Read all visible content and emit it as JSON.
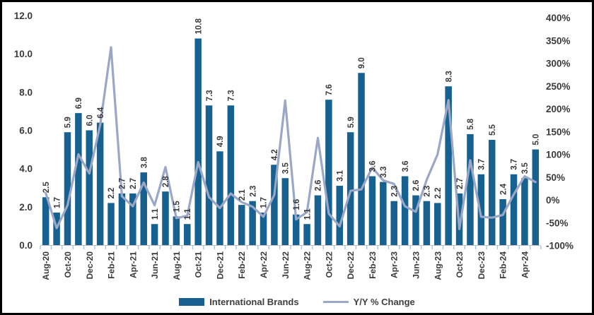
{
  "legend": {
    "bars_label": "International Brands",
    "line_label": "Y/Y % Change"
  },
  "colors": {
    "bar": "#16618F",
    "line": "#9BA7C7",
    "axis_line": "#BFBFBF",
    "axis_tick": "#9DC3E6",
    "text": "#3A3A3A",
    "frame_border": "#000000"
  },
  "chart_data": {
    "type": "bar",
    "combo": "bar+line",
    "title": "",
    "xlabel": "",
    "ylabel_left": "",
    "ylabel_right": "",
    "categories": [
      "Aug-20",
      "Sep-20",
      "Oct-20",
      "Nov-20",
      "Dec-20",
      "Jan-21",
      "Feb-21",
      "Mar-21",
      "Apr-21",
      "May-21",
      "Jun-21",
      "Jul-21",
      "Aug-21",
      "Sep-21",
      "Oct-21",
      "Nov-21",
      "Dec-21",
      "Jan-22",
      "Feb-22",
      "Mar-22",
      "Apr-22",
      "May-22",
      "Jun-22",
      "Jul-22",
      "Aug-22",
      "Sep-22",
      "Oct-22",
      "Nov-22",
      "Dec-22",
      "Jan-23",
      "Feb-23",
      "Mar-23",
      "Apr-23",
      "May-23",
      "Jun-23",
      "Jul-23",
      "Aug-23",
      "Sep-23",
      "Oct-23",
      "Nov-23",
      "Dec-23",
      "Jan-24",
      "Feb-24",
      "Mar-24",
      "Apr-24",
      "May-24"
    ],
    "x_tick_step": 2,
    "series": [
      {
        "name": "International Brands",
        "type": "bar",
        "axis": "left",
        "values": [
          2.5,
          1.7,
          5.9,
          6.9,
          6.0,
          6.4,
          2.2,
          2.7,
          2.7,
          3.8,
          1.1,
          2.8,
          1.5,
          1.1,
          10.8,
          7.3,
          4.9,
          7.3,
          2.1,
          2.3,
          1.7,
          4.2,
          3.5,
          1.6,
          1.1,
          2.6,
          7.6,
          3.1,
          5.9,
          9.0,
          3.6,
          3.3,
          2.3,
          3.6,
          2.6,
          2.3,
          2.2,
          8.3,
          2.7,
          5.8,
          3.7,
          5.5,
          2.4,
          3.7,
          3.5,
          5.0
        ]
      },
      {
        "name": "Y/Y % Change",
        "type": "line",
        "axis": "right",
        "values": [
          15,
          -62,
          -12,
          100,
          58,
          165,
          335,
          8,
          -14,
          38,
          -12,
          72,
          -40,
          -35,
          83,
          6,
          -18,
          14,
          -5,
          -15,
          -37,
          11,
          218,
          -43,
          -27,
          136,
          -30,
          -58,
          20,
          23,
          71,
          43,
          35,
          -14,
          -26,
          44,
          100,
          219,
          -64,
          87,
          -37,
          -39,
          -33,
          12,
          52,
          39
        ]
      }
    ],
    "left_axis": {
      "min": 0,
      "max": 12,
      "ticks": [
        "12.0",
        "10.0",
        "8.0",
        "6.0",
        "4.0",
        "2.0",
        "0.0"
      ]
    },
    "right_axis": {
      "min": -100,
      "max": 400,
      "ticks": [
        "400%",
        "350%",
        "300%",
        "250%",
        "200%",
        "150%",
        "100%",
        "50%",
        "0%",
        "-50%",
        "-100%"
      ]
    },
    "grid": false,
    "legend_position": "bottom",
    "data_labels": "rotated-90-above-bars"
  }
}
